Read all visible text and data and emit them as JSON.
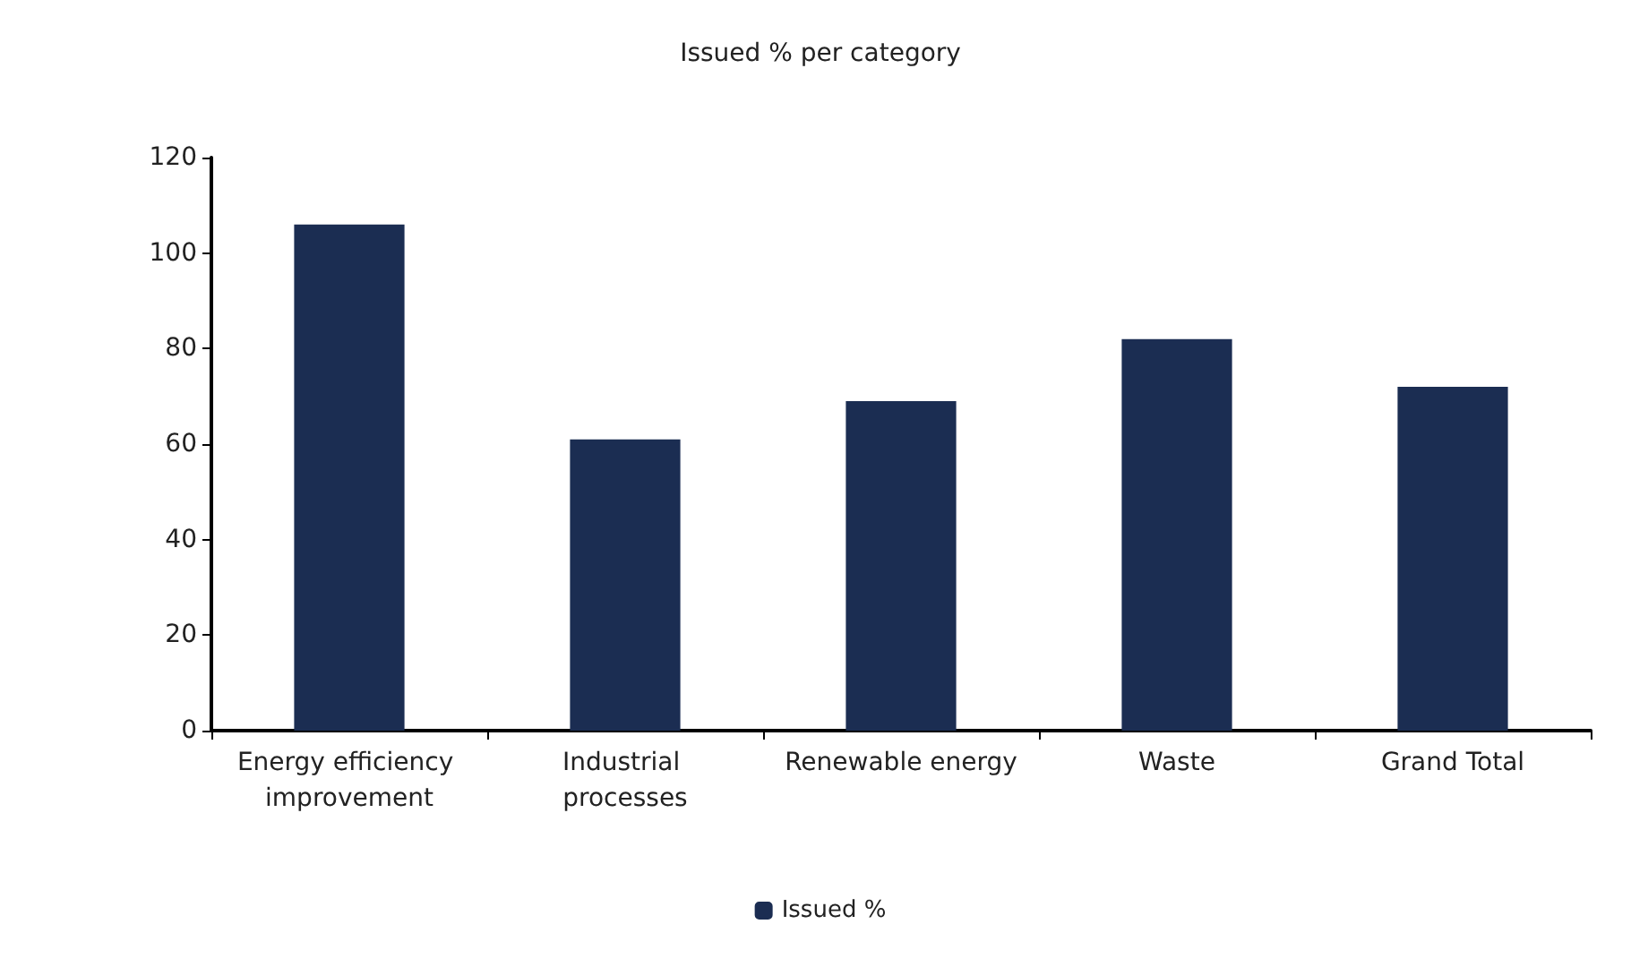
{
  "chart_data": {
    "type": "bar",
    "title": "Issued % per category",
    "categories": [
      "Energy efficiency improvement",
      "Industrial processes",
      "Renewable energy",
      "Waste",
      "Grand Total"
    ],
    "series": [
      {
        "name": "Issued %",
        "color": "#1b2d52",
        "values": [
          106,
          61,
          69,
          82,
          72
        ]
      }
    ],
    "ylim": [
      0,
      120
    ],
    "yticks": [
      0,
      20,
      40,
      60,
      80,
      100,
      120
    ],
    "grid": false,
    "legend": "bottom"
  }
}
